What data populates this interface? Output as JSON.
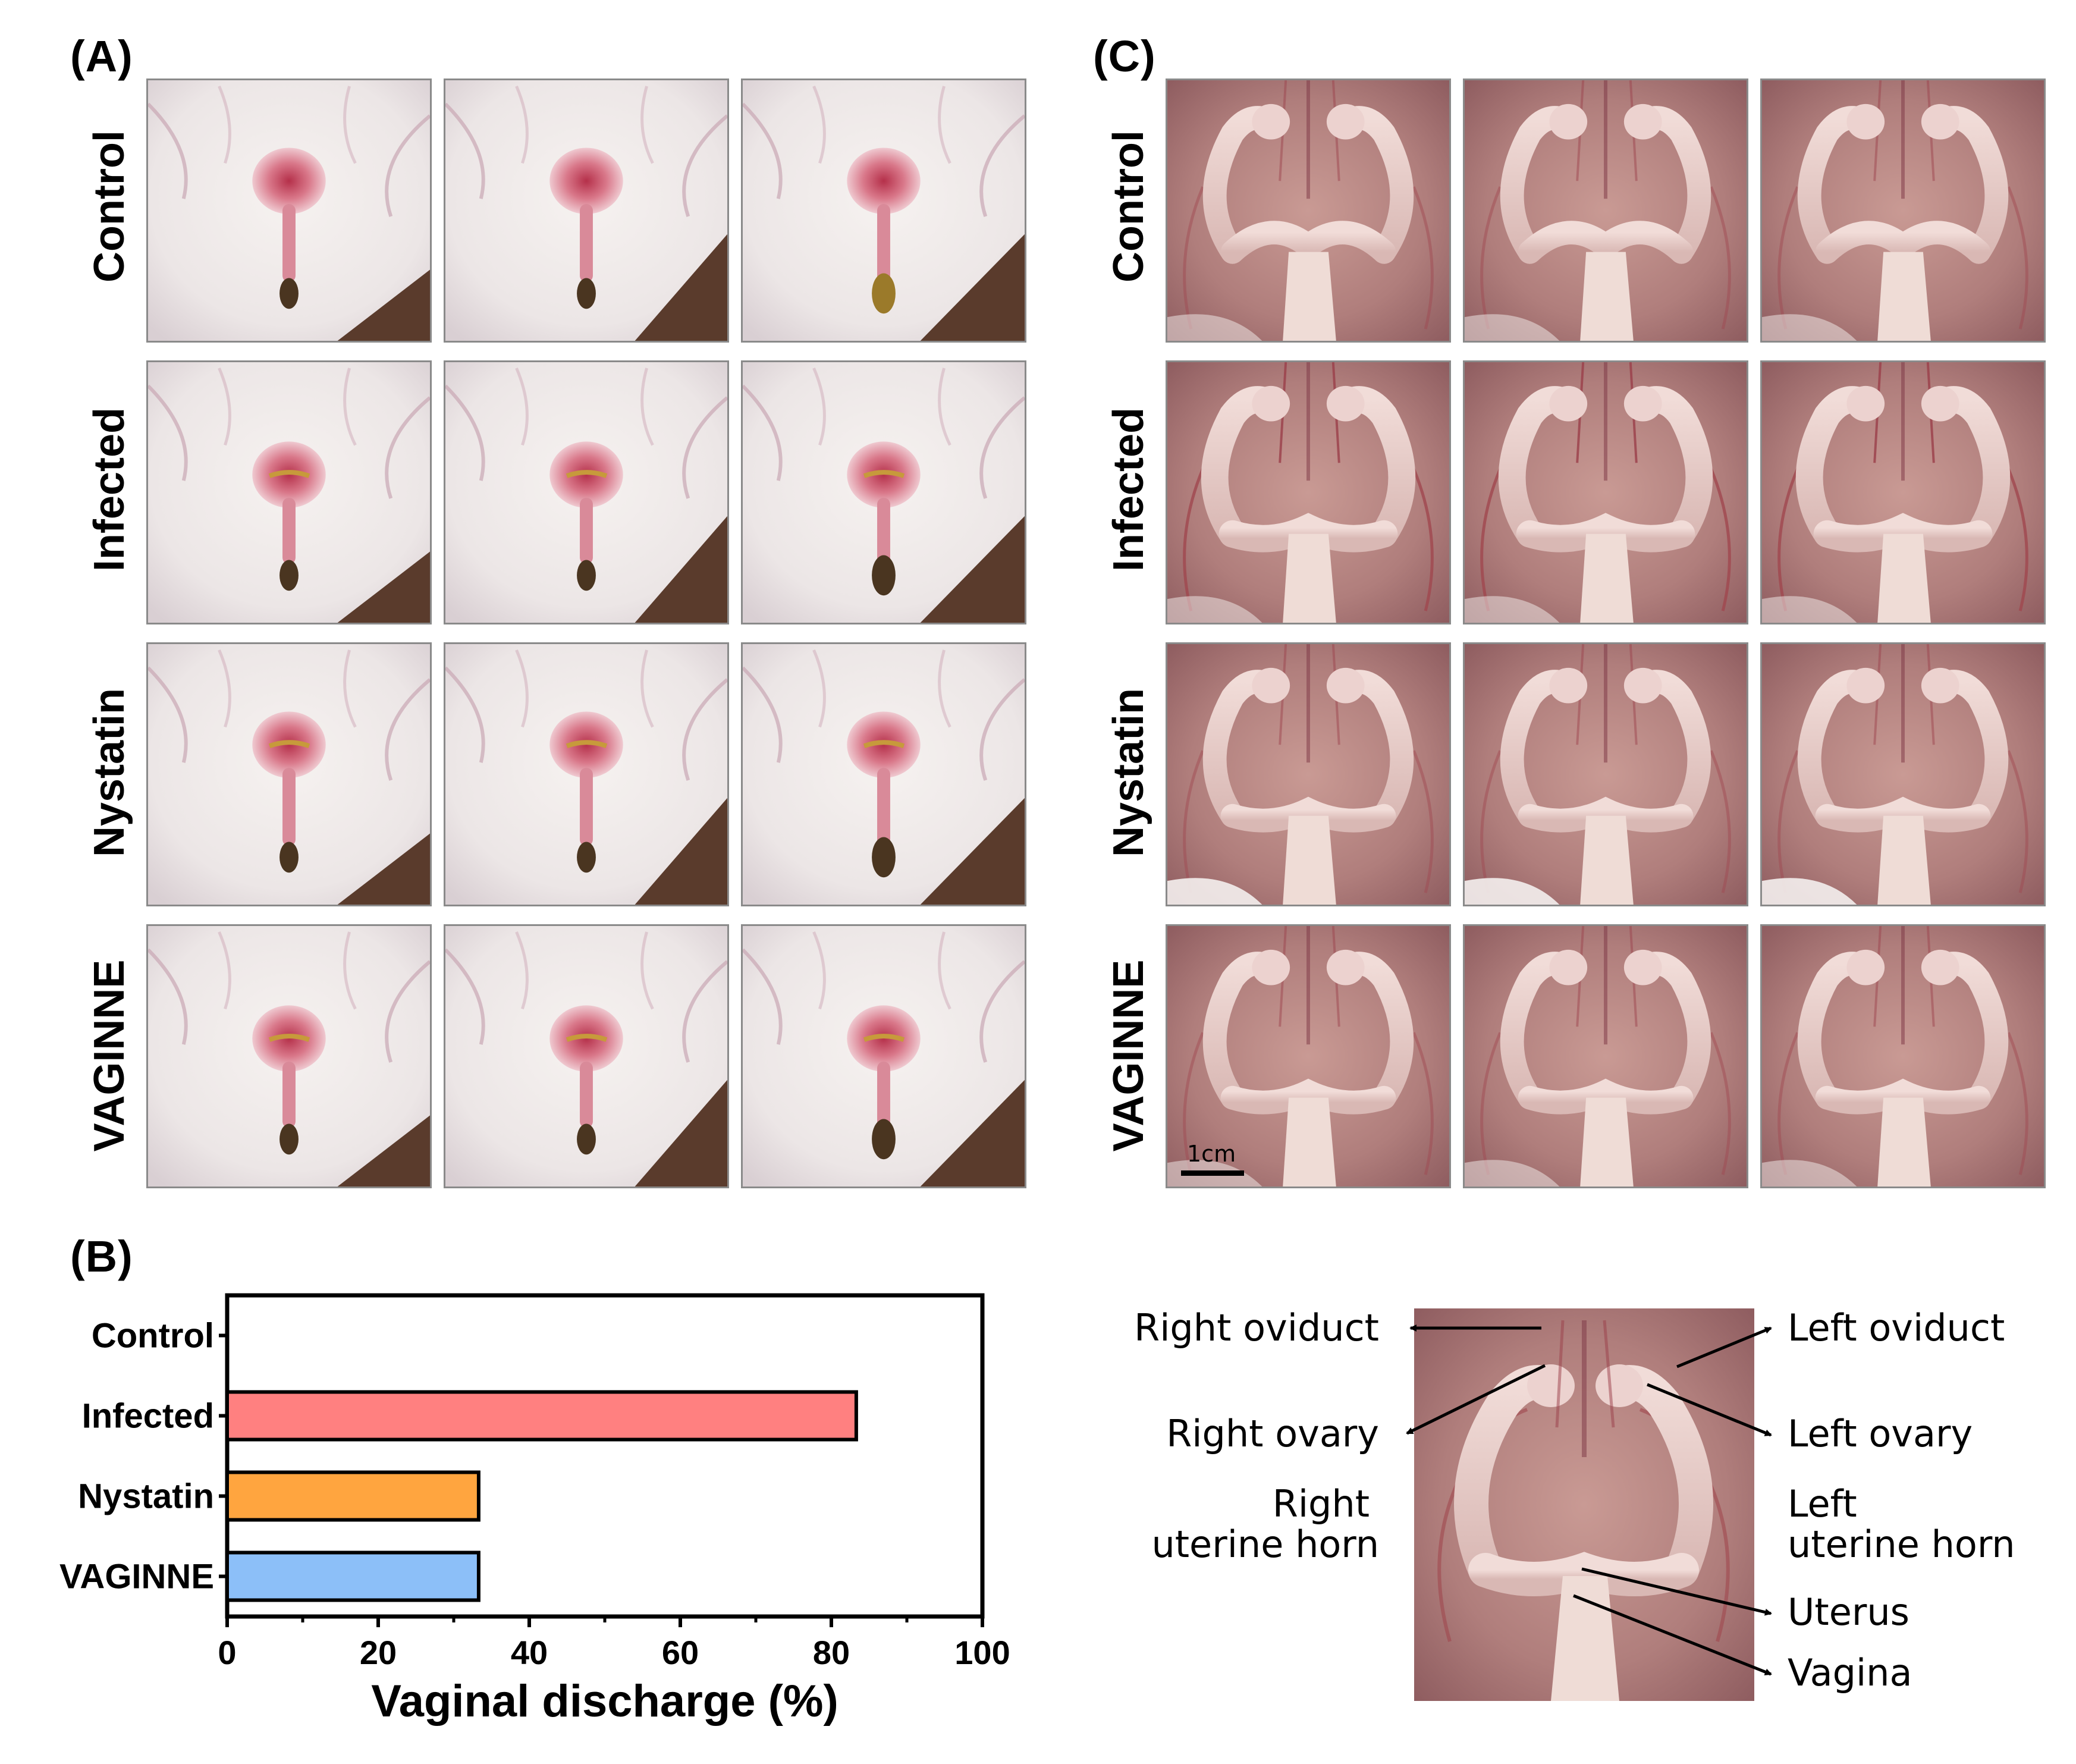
{
  "panels": {
    "a": "(A)",
    "b": "(B)",
    "c": "(C)"
  },
  "groups": [
    "Control",
    "Infected",
    "Nystatin",
    "VAGINNE"
  ],
  "scale_bar_label": "1cm",
  "chart_data": {
    "type": "bar",
    "orientation": "horizontal",
    "categories": [
      "Control",
      "Infected",
      "Nystatin",
      "VAGINNE"
    ],
    "values": [
      0,
      83.3,
      33.3,
      33.3
    ],
    "colors": [
      "#ff8080",
      "#ff8080",
      "#ffa53f",
      "#8cbff8"
    ],
    "xlabel": "Vaginal discharge (%)",
    "xlim": [
      0,
      100
    ],
    "xticks": [
      "0",
      "20",
      "40",
      "60",
      "80",
      "100"
    ],
    "grid": false
  },
  "annotations": {
    "right_oviduct": "Right  oviduct",
    "right_ovary": "Right ovary",
    "right_uterine_horn_1": "Right",
    "right_uterine_horn_2": "uterine horn",
    "left_oviduct": "Left oviduct",
    "left_ovary": "Left ovary",
    "left_uterine_horn_1": "Left",
    "left_uterine_horn_2": "uterine horn",
    "uterus": "Uterus",
    "vagina": "Vagina"
  }
}
